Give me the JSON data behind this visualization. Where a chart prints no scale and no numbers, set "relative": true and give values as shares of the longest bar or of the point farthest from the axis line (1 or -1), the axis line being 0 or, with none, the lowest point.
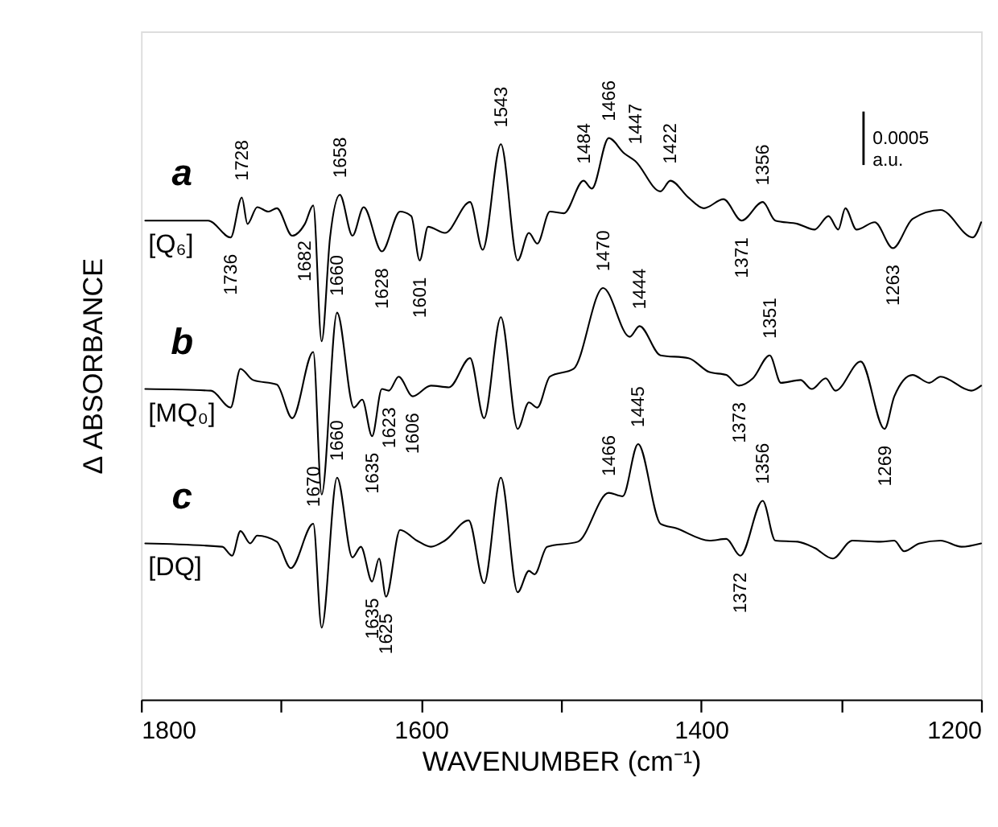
{
  "chart_data": {
    "type": "line",
    "relative": true,
    "xlabel": "WAVENUMBER (cm⁻¹)",
    "ylabel": "Δ  ABSORBANCE",
    "xlim": [
      1800,
      1200
    ],
    "xticks": [
      1800,
      {
        "value": 1700,
        "label": null
      },
      1600,
      {
        "value": 1500,
        "label": null
      },
      1400,
      {
        "value": 1300,
        "label": null
      },
      1200
    ],
    "tick_labels": "x",
    "grid": false,
    "marker": "none",
    "line_style": "solid",
    "series": [
      {
        "name": "a",
        "color": "#000000",
        "x": [
          1797,
          1752,
          1736,
          1728,
          1724,
          1717,
          1709,
          1703,
          1692,
          1683,
          1677,
          1671,
          1665,
          1658,
          1649,
          1641,
          1628,
          1615,
          1607,
          1601,
          1595,
          1583,
          1565,
          1556,
          1543,
          1531,
          1523,
          1517,
          1508,
          1498,
          1484,
          1478,
          1466,
          1455,
          1447,
          1429,
          1422,
          1409,
          1398,
          1384,
          1371,
          1356,
          1347,
          1331,
          1319,
          1309,
          1302,
          1297,
          1289,
          1276,
          1263,
          1249,
          1229,
          1206,
          1200
        ],
        "values": [
          0.853,
          0.853,
          0.823,
          0.894,
          0.847,
          0.877,
          0.869,
          0.875,
          0.826,
          0.847,
          0.88,
          0.638,
          0.823,
          0.899,
          0.826,
          0.877,
          0.798,
          0.869,
          0.861,
          0.782,
          0.842,
          0.831,
          0.886,
          0.801,
          0.989,
          0.782,
          0.831,
          0.812,
          0.869,
          0.866,
          0.924,
          0.91,
          1.0,
          0.973,
          0.959,
          0.905,
          0.924,
          0.894,
          0.875,
          0.891,
          0.853,
          0.886,
          0.853,
          0.847,
          0.837,
          0.861,
          0.837,
          0.875,
          0.837,
          0.85,
          0.804,
          0.856,
          0.872,
          0.823,
          0.85
        ]
      },
      {
        "name": "b",
        "color": "#000000",
        "x": [
          1797,
          1750,
          1736,
          1729,
          1720,
          1703,
          1692,
          1677,
          1671,
          1660,
          1648,
          1642,
          1635,
          1628,
          1623,
          1616,
          1606,
          1593,
          1580,
          1565,
          1555,
          1543,
          1531,
          1523,
          1517,
          1508,
          1491,
          1470,
          1451,
          1444,
          1429,
          1409,
          1394,
          1382,
          1373,
          1363,
          1351,
          1343,
          1329,
          1321,
          1311,
          1304,
          1286,
          1269,
          1262,
          1249,
          1237,
          1229,
          1207,
          1200
        ],
        "values": [
          0.553,
          0.55,
          0.52,
          0.589,
          0.569,
          0.561,
          0.501,
          0.619,
          0.365,
          0.689,
          0.52,
          0.534,
          0.469,
          0.553,
          0.55,
          0.575,
          0.54,
          0.559,
          0.556,
          0.608,
          0.501,
          0.681,
          0.482,
          0.529,
          0.52,
          0.575,
          0.589,
          0.733,
          0.646,
          0.665,
          0.613,
          0.608,
          0.583,
          0.578,
          0.559,
          0.572,
          0.613,
          0.564,
          0.569,
          0.553,
          0.572,
          0.55,
          0.602,
          0.482,
          0.54,
          0.578,
          0.564,
          0.575,
          0.55,
          0.559
        ]
      },
      {
        "name": "c",
        "color": "#000000",
        "x": [
          1797,
          1742,
          1735,
          1729,
          1722,
          1717,
          1703,
          1693,
          1677,
          1671,
          1660,
          1649,
          1643,
          1635,
          1630,
          1625,
          1615,
          1603,
          1593,
          1583,
          1566,
          1555,
          1543,
          1531,
          1523,
          1519,
          1510,
          1488,
          1466,
          1456,
          1445,
          1429,
          1418,
          1394,
          1382,
          1372,
          1356,
          1347,
          1331,
          1319,
          1306,
          1292,
          1272,
          1262,
          1255,
          1244,
          1229,
          1214,
          1200
        ],
        "values": [
          0.278,
          0.272,
          0.256,
          0.3,
          0.278,
          0.292,
          0.281,
          0.234,
          0.313,
          0.128,
          0.395,
          0.253,
          0.272,
          0.21,
          0.251,
          0.183,
          0.302,
          0.283,
          0.272,
          0.283,
          0.319,
          0.207,
          0.395,
          0.191,
          0.229,
          0.223,
          0.272,
          0.281,
          0.368,
          0.362,
          0.455,
          0.313,
          0.305,
          0.283,
          0.286,
          0.256,
          0.354,
          0.283,
          0.281,
          0.27,
          0.251,
          0.283,
          0.281,
          0.283,
          0.264,
          0.278,
          0.283,
          0.272,
          0.278
        ]
      }
    ],
    "annotations": [
      {
        "text": "[Q₆]",
        "x": 1797,
        "y": 0.853
      },
      {
        "text": "[MQ₀]",
        "x": 1797,
        "y": 0.553
      },
      {
        "text": "[DQ]",
        "x": 1797,
        "y": 0.278
      },
      "0.0005\na.u.",
      {
        "text": "1728",
        "x": 1728,
        "y": 0.894
      },
      {
        "text": "1658",
        "x": 1658,
        "y": 0.899
      },
      {
        "text": "1543",
        "x": 1543,
        "y": 0.989
      },
      {
        "text": "1484",
        "x": 1484,
        "y": 0.924
      },
      {
        "text": "1466",
        "x": 1466,
        "y": 1.0
      },
      {
        "text": "1447",
        "x": 1447,
        "y": 0.959
      },
      {
        "text": "1422",
        "x": 1422,
        "y": 0.924
      },
      {
        "text": "1356",
        "x": 1356,
        "y": 0.886
      },
      {
        "text": "1736",
        "x": 1736,
        "y": 0.823
      },
      {
        "text": "1682",
        "x": 1683,
        "y": 0.847
      },
      {
        "text": "1628",
        "x": 1628,
        "y": 0.798
      },
      {
        "text": "1601",
        "x": 1601,
        "y": 0.782
      },
      {
        "text": "1371",
        "x": 1371,
        "y": 0.853
      },
      {
        "text": "1263",
        "x": 1263,
        "y": 0.804
      },
      {
        "text": "1660",
        "x": 1660,
        "y": 0.689
      },
      {
        "text": "1470",
        "x": 1470,
        "y": 0.733
      },
      {
        "text": "1444",
        "x": 1444,
        "y": 0.665
      },
      {
        "text": "1351",
        "x": 1351,
        "y": 0.613
      },
      {
        "text": "1635",
        "x": 1635,
        "y": 0.469
      },
      {
        "text": "1623",
        "x": 1623,
        "y": 0.55
      },
      {
        "text": "1606",
        "x": 1606,
        "y": 0.54
      },
      {
        "text": "1373",
        "x": 1373,
        "y": 0.559
      },
      {
        "text": "1269",
        "x": 1269,
        "y": 0.482
      },
      {
        "text": "1670",
        "x": 1677,
        "y": 0.313
      },
      {
        "text": "1660",
        "x": 1660,
        "y": 0.395
      },
      {
        "text": "1466",
        "x": 1466,
        "y": 0.368
      },
      {
        "text": "1445",
        "x": 1445,
        "y": 0.455
      },
      {
        "text": "1356",
        "x": 1356,
        "y": 0.354
      },
      {
        "text": "1635",
        "x": 1635,
        "y": 0.21
      },
      {
        "text": "1625",
        "x": 1625,
        "y": 0.183
      },
      {
        "text": "1372",
        "x": 1372,
        "y": 0.256
      }
    ]
  }
}
